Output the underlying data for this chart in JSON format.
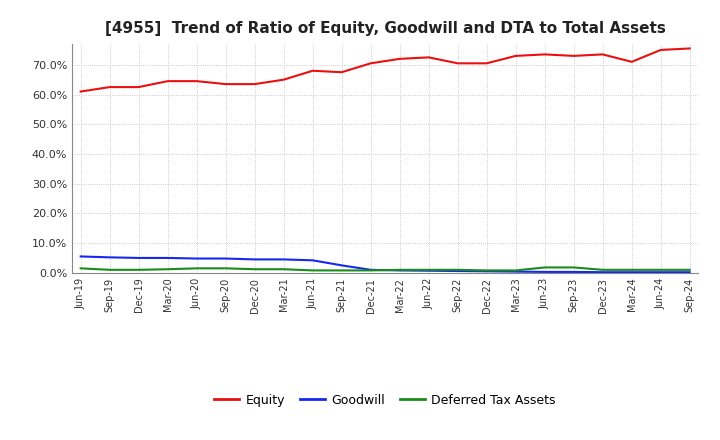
{
  "title": "[4955]  Trend of Ratio of Equity, Goodwill and DTA to Total Assets",
  "x_labels": [
    "Jun-19",
    "Sep-19",
    "Dec-19",
    "Mar-20",
    "Jun-20",
    "Sep-20",
    "Dec-20",
    "Mar-21",
    "Jun-21",
    "Sep-21",
    "Dec-21",
    "Mar-22",
    "Jun-22",
    "Sep-22",
    "Dec-22",
    "Mar-23",
    "Jun-23",
    "Sep-23",
    "Dec-23",
    "Mar-24",
    "Jun-24",
    "Sep-24"
  ],
  "equity": [
    61.0,
    62.5,
    62.5,
    64.5,
    64.5,
    63.5,
    63.5,
    65.0,
    68.0,
    67.5,
    70.5,
    72.0,
    72.5,
    70.5,
    70.5,
    73.0,
    73.5,
    73.0,
    73.5,
    71.0,
    75.0,
    75.5
  ],
  "goodwill": [
    5.5,
    5.2,
    5.0,
    5.0,
    4.8,
    4.8,
    4.5,
    4.5,
    4.2,
    2.5,
    1.0,
    0.8,
    0.7,
    0.6,
    0.5,
    0.4,
    0.3,
    0.3,
    0.2,
    0.2,
    0.2,
    0.2
  ],
  "dta": [
    1.5,
    1.0,
    1.0,
    1.2,
    1.5,
    1.5,
    1.2,
    1.2,
    0.8,
    0.8,
    0.8,
    1.0,
    1.0,
    1.0,
    0.8,
    0.8,
    1.8,
    1.8,
    1.0,
    1.0,
    1.0,
    1.0
  ],
  "equity_color": "#e81010",
  "goodwill_color": "#1428f0",
  "dta_color": "#1a8c1a",
  "ylim": [
    0,
    77
  ],
  "yticks": [
    0,
    10,
    20,
    30,
    40,
    50,
    60,
    70
  ],
  "background_color": "#ffffff",
  "grid_color": "#aaaaaa",
  "legend_labels": [
    "Equity",
    "Goodwill",
    "Deferred Tax Assets"
  ]
}
